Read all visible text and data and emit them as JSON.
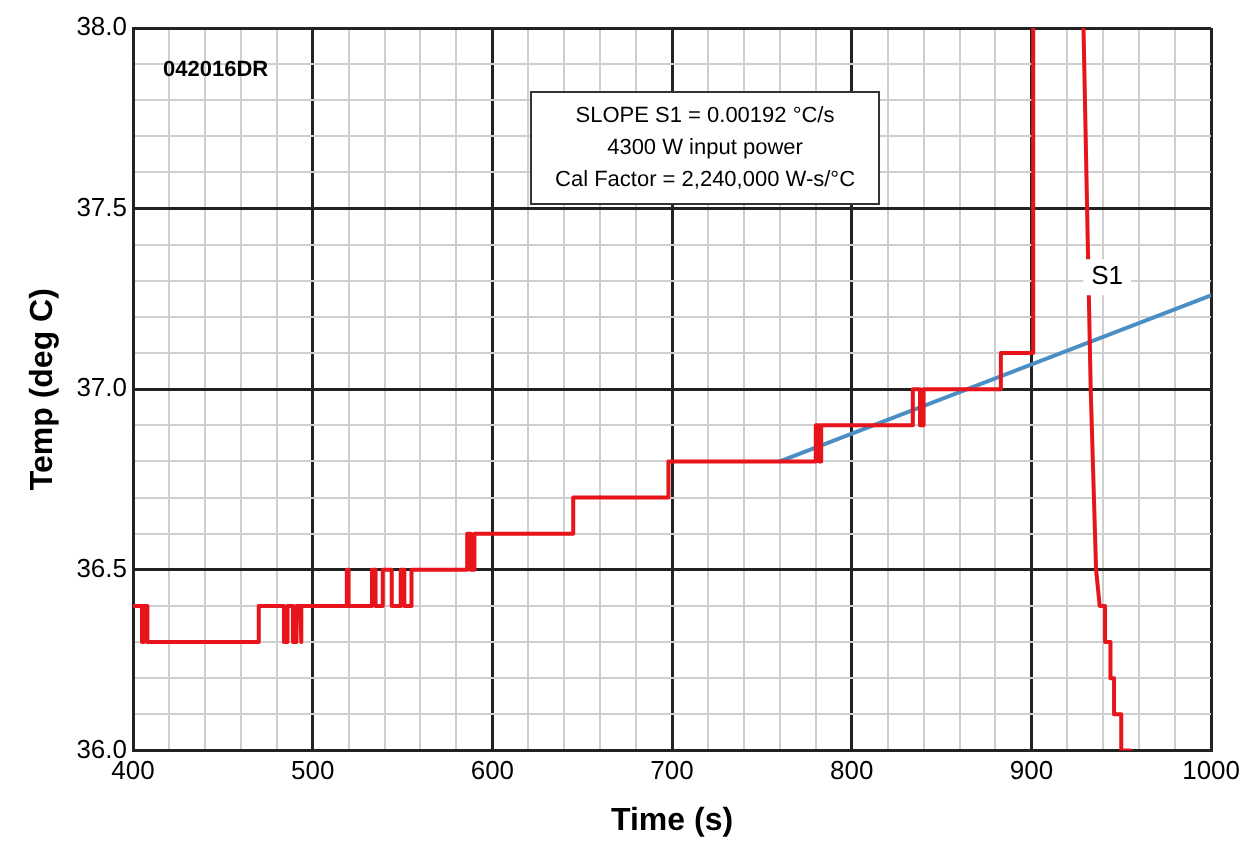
{
  "chart_data": {
    "type": "line",
    "xlabel": "Time (s)",
    "ylabel": "Temp (deg C)",
    "xlim": [
      400,
      1000
    ],
    "ylim": [
      36.0,
      38.0
    ],
    "xticks": [
      400,
      {
        "value": 420,
        "label": null
      },
      {
        "value": 440,
        "label": null
      },
      {
        "value": 460,
        "label": null
      },
      {
        "value": 480,
        "label": null
      },
      500,
      {
        "value": 520,
        "label": null
      },
      {
        "value": 540,
        "label": null
      },
      {
        "value": 560,
        "label": null
      },
      {
        "value": 580,
        "label": null
      },
      600,
      {
        "value": 620,
        "label": null
      },
      {
        "value": 640,
        "label": null
      },
      {
        "value": 660,
        "label": null
      },
      {
        "value": 680,
        "label": null
      },
      700,
      {
        "value": 720,
        "label": null
      },
      {
        "value": 740,
        "label": null
      },
      {
        "value": 760,
        "label": null
      },
      {
        "value": 780,
        "label": null
      },
      800,
      {
        "value": 820,
        "label": null
      },
      {
        "value": 840,
        "label": null
      },
      {
        "value": 860,
        "label": null
      },
      {
        "value": 880,
        "label": null
      },
      900,
      {
        "value": 920,
        "label": null
      },
      {
        "value": 940,
        "label": null
      },
      {
        "value": 960,
        "label": null
      },
      {
        "value": 980,
        "label": null
      },
      1000
    ],
    "yticks": [
      {
        "value": 36.0,
        "label": "36.0"
      },
      {
        "value": 36.1,
        "label": null
      },
      {
        "value": 36.2,
        "label": null
      },
      {
        "value": 36.3,
        "label": null
      },
      {
        "value": 36.4,
        "label": null
      },
      {
        "value": 36.5,
        "label": "36.5"
      },
      {
        "value": 36.6,
        "label": null
      },
      {
        "value": 36.7,
        "label": null
      },
      {
        "value": 36.8,
        "label": null
      },
      {
        "value": 36.9,
        "label": null
      },
      {
        "value": 37.0,
        "label": "37.0"
      },
      {
        "value": 37.1,
        "label": null
      },
      {
        "value": 37.2,
        "label": null
      },
      {
        "value": 37.3,
        "label": null
      },
      {
        "value": 37.4,
        "label": null
      },
      {
        "value": 37.5,
        "label": "37.5"
      },
      {
        "value": 37.6,
        "label": null
      },
      {
        "value": 37.7,
        "label": null
      },
      {
        "value": 37.8,
        "label": null
      },
      {
        "value": 37.9,
        "label": null
      },
      {
        "value": 38.0,
        "label": "38.0"
      }
    ],
    "grid": true,
    "legend": false,
    "marker": "none",
    "line_style": "solid",
    "series": [
      {
        "color": "#e8141b",
        "x": [
          400,
          405,
          405,
          406,
          406,
          408,
          408,
          410,
          470,
          470,
          484,
          484,
          486,
          486,
          489,
          489,
          491,
          491,
          493,
          493,
          494,
          494,
          519,
          519,
          520,
          520,
          533,
          533,
          535,
          535,
          539,
          539,
          544,
          544,
          549,
          549,
          551,
          551,
          555,
          555,
          586,
          586,
          588,
          588,
          590,
          590,
          645,
          645,
          698,
          698,
          780,
          780,
          782,
          782,
          783,
          783,
          834,
          834,
          838,
          838,
          840,
          840,
          883,
          883,
          901,
          901,
          915,
          929,
          933,
          936,
          938,
          941,
          941,
          944,
          944,
          946,
          946,
          950,
          950,
          955
        ],
        "values": [
          36.4,
          36.4,
          36.3,
          36.3,
          36.4,
          36.4,
          36.3,
          36.3,
          36.3,
          36.4,
          36.4,
          36.3,
          36.3,
          36.4,
          36.4,
          36.3,
          36.3,
          36.4,
          36.4,
          36.3,
          36.3,
          36.4,
          36.4,
          36.5,
          36.5,
          36.4,
          36.4,
          36.5,
          36.5,
          36.4,
          36.4,
          36.5,
          36.5,
          36.4,
          36.4,
          36.5,
          36.5,
          36.4,
          36.4,
          36.5,
          36.5,
          36.6,
          36.6,
          36.5,
          36.5,
          36.6,
          36.6,
          36.7,
          36.7,
          36.8,
          36.8,
          36.9,
          36.9,
          36.8,
          36.8,
          36.9,
          36.9,
          37.0,
          37.0,
          36.9,
          36.9,
          37.0,
          37.0,
          37.1,
          37.1,
          38.0,
          null,
          38.0,
          37.0,
          36.5,
          36.4,
          36.4,
          36.3,
          36.3,
          36.2,
          36.2,
          36.1,
          36.1,
          36.0,
          36.0
        ]
      },
      {
        "name": "S1",
        "color": "#4a8ec4",
        "x": [
          760,
          1000
        ],
        "values": [
          36.8,
          37.26
        ]
      }
    ],
    "annotations": [
      "042016DR",
      "SLOPE S1 = 0.00192 °C/s",
      "4300 W input power",
      "Cal Factor = 2,240,000 W-s/°C"
    ]
  }
}
